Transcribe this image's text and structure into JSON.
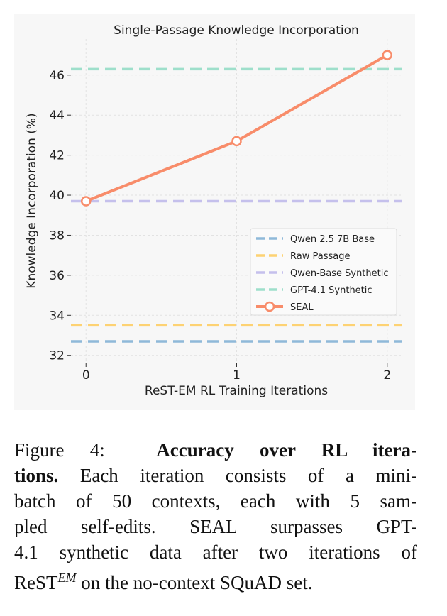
{
  "chart_data": {
    "type": "line",
    "title": "Single-Passage Knowledge Incorporation",
    "xlabel": "ReST-EM RL Training Iterations",
    "ylabel": "Knowledge Incorporation (%)",
    "x": [
      0,
      1,
      2
    ],
    "xticks": [
      "0",
      "1",
      "2"
    ],
    "yticks": [
      32,
      34,
      36,
      38,
      40,
      42,
      44,
      46
    ],
    "xlim": [
      -0.1,
      2.1
    ],
    "ylim": [
      31.6,
      47.8
    ],
    "grid": true,
    "legend_position": "center-right",
    "baselines": [
      {
        "name": "Qwen 2.5 7B Base",
        "value": 32.7,
        "color": "#8fb9d9"
      },
      {
        "name": "Raw Passage",
        "value": 33.5,
        "color": "#fdd273"
      },
      {
        "name": "Qwen-Base Synthetic",
        "value": 39.7,
        "color": "#c5c0ec"
      },
      {
        "name": "GPT-4.1 Synthetic",
        "value": 46.3,
        "color": "#9edfcb"
      }
    ],
    "series": [
      {
        "name": "SEAL",
        "values": [
          39.7,
          42.7,
          47.0
        ],
        "color": "#f88c6a"
      }
    ]
  },
  "caption": {
    "label": "Figure 4:",
    "bold1": "Accuracy over RL itera-",
    "bold2": "tions.",
    "line2_rest": "Each iteration consists of a mini-",
    "line3": "batch of 50 contexts, each with 5 sam-",
    "line4": "pled self-edits.  SEAL surpasses GPT-",
    "line5": "4.1 synthetic data after two iterations of",
    "line6_pre": "ReST",
    "line6_sup": "EM",
    "line6_rest": " on the no-context SQuAD set."
  }
}
